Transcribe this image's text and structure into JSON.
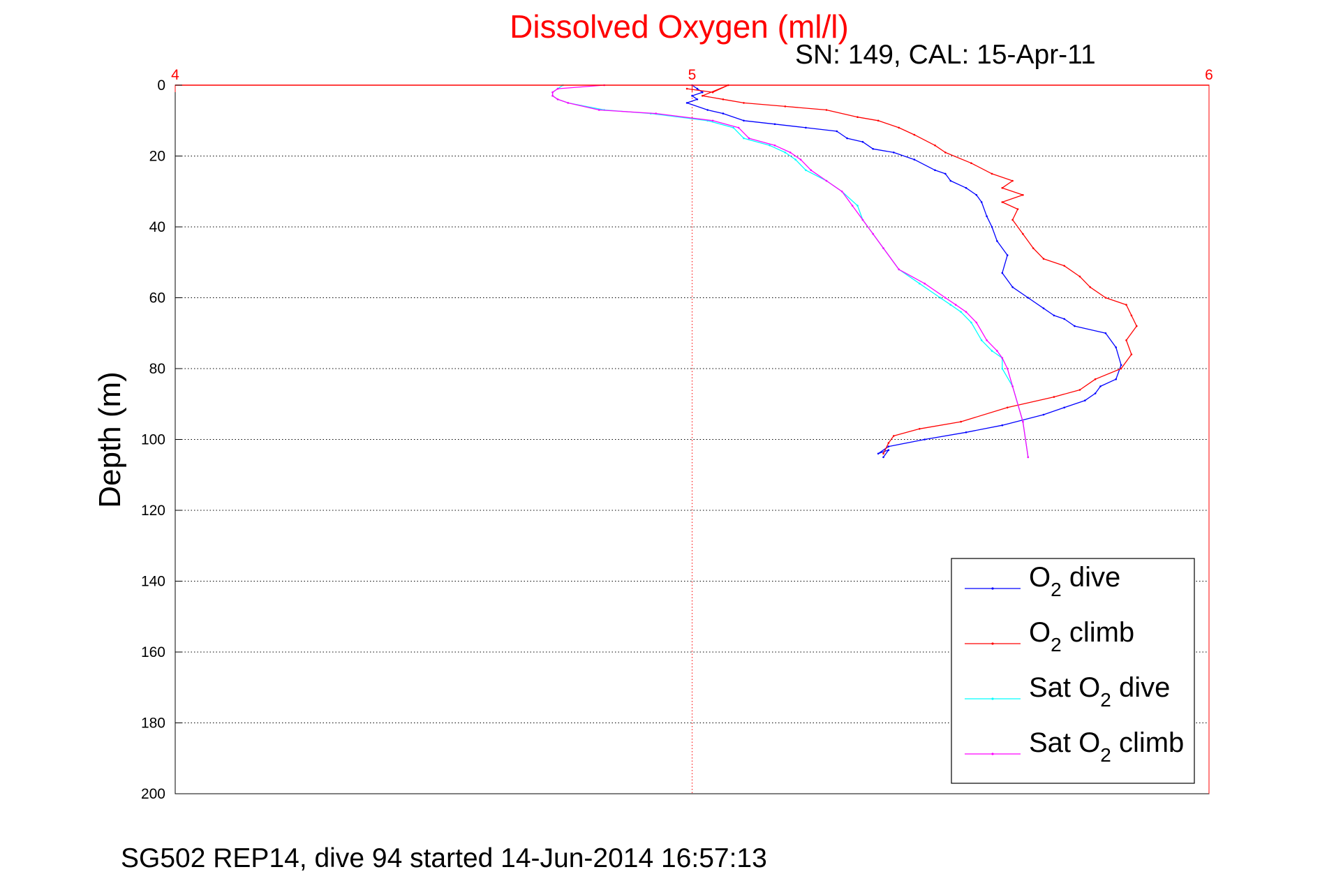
{
  "chart_data": {
    "type": "line",
    "title": "Dissolved Oxygen (ml/l)",
    "subtitle": "SN: 149, CAL: 15-Apr-11",
    "caption": "SG502 REP14, dive 94 started 14-Jun-2014 16:57:13",
    "xlabel": "",
    "ylabel": "Depth (m)",
    "xlim": [
      4,
      6
    ],
    "ylim": [
      0,
      200
    ],
    "y_reversed": true,
    "x_axis_position": "top",
    "xticks": [
      "4",
      "5",
      "6"
    ],
    "yticks": [
      "0",
      "20",
      "40",
      "60",
      "80",
      "100",
      "120",
      "140",
      "160",
      "180",
      "200"
    ],
    "grid": true,
    "legend_position": "bottom-right",
    "colors": {
      "title": "#ff0000",
      "x_axis": "#ff0000",
      "y_axis": "#000000"
    },
    "legend": [
      {
        "main": "O",
        "sub": "2",
        "rest": " dive",
        "color": "#0000ff"
      },
      {
        "main": "O",
        "sub": "2",
        "rest": " climb",
        "color": "#ff0000"
      },
      {
        "main": "Sat O",
        "sub": "2",
        "rest": " dive",
        "color": "#00ffff"
      },
      {
        "main": "Sat O",
        "sub": "2",
        "rest": " climb",
        "color": "#ff00ff"
      }
    ],
    "series": [
      {
        "name": "O2 dive",
        "color": "#0000ff",
        "x": [
          5.0,
          5.01,
          5.02,
          5.0,
          5.01,
          4.99,
          5.03,
          5.06,
          5.1,
          5.16,
          5.22,
          5.28,
          5.3,
          5.33,
          5.35,
          5.39,
          5.43,
          5.47,
          5.49,
          5.5,
          5.53,
          5.55,
          5.56,
          5.57,
          5.58,
          5.59,
          5.61,
          5.6,
          5.62,
          5.65,
          5.68,
          5.7,
          5.72,
          5.74,
          5.8,
          5.82,
          5.83,
          5.82,
          5.79,
          5.78,
          5.76,
          5.72,
          5.68,
          5.6,
          5.53,
          5.45,
          5.38,
          5.36,
          5.38,
          5.37
        ],
        "y": [
          0,
          1,
          2,
          3,
          4,
          5,
          7,
          8,
          10,
          11,
          12,
          13,
          15,
          16,
          18,
          19,
          21,
          24,
          25,
          27,
          29,
          31,
          33,
          37,
          40,
          44,
          48,
          53,
          57,
          60,
          63,
          65,
          66,
          68,
          70,
          74,
          79,
          83,
          85,
          87,
          89,
          91,
          93,
          96,
          98,
          100,
          102,
          104,
          103,
          105
        ]
      },
      {
        "name": "O2 climb",
        "color": "#ff0000",
        "x": [
          4.99,
          5.04,
          5.07,
          5.02,
          5.06,
          5.1,
          5.18,
          5.26,
          5.32,
          5.36,
          5.4,
          5.43,
          5.47,
          5.49,
          5.54,
          5.58,
          5.62,
          5.6,
          5.64,
          5.6,
          5.63,
          5.62,
          5.64,
          5.66,
          5.68,
          5.72,
          5.75,
          5.77,
          5.8,
          5.84,
          5.85,
          5.86,
          5.84,
          5.85,
          5.83,
          5.78,
          5.75,
          5.7,
          5.61,
          5.52,
          5.44,
          5.39,
          5.38,
          5.37
        ],
        "y": [
          1,
          2,
          0,
          3,
          4,
          5,
          6,
          7,
          9,
          10,
          12,
          14,
          17,
          19,
          22,
          25,
          27,
          29,
          31,
          33,
          35,
          38,
          42,
          46,
          49,
          51,
          54,
          57,
          60,
          62,
          65,
          68,
          72,
          76,
          80,
          83,
          86,
          88,
          91,
          95,
          97,
          99,
          101,
          104
        ]
      },
      {
        "name": "Sat O2 dive",
        "color": "#00ffff",
        "x": [
          4.75,
          4.74,
          4.73,
          4.73,
          4.74,
          4.76,
          4.83,
          4.92,
          5.03,
          5.08,
          5.1,
          5.15,
          5.18,
          5.2,
          5.22,
          5.26,
          5.29,
          5.32,
          5.33,
          5.35,
          5.37,
          5.4,
          5.44,
          5.48,
          5.5,
          5.52,
          5.54,
          5.56,
          5.58,
          5.6,
          5.6,
          5.62,
          5.64,
          5.65
        ],
        "y": [
          0,
          1,
          2,
          3,
          4,
          5,
          7,
          8,
          10,
          12,
          15,
          17,
          19,
          21,
          24,
          27,
          30,
          34,
          38,
          42,
          46,
          52,
          56,
          60,
          62,
          64,
          67,
          72,
          75,
          77,
          80,
          85,
          95,
          105
        ]
      },
      {
        "name": "Sat O2 climb",
        "color": "#ff00ff",
        "x": [
          4.83,
          4.74,
          4.73,
          4.73,
          4.74,
          4.76,
          4.82,
          4.93,
          5.04,
          5.09,
          5.11,
          5.16,
          5.19,
          5.21,
          5.23,
          5.26,
          5.29,
          5.31,
          5.33,
          5.35,
          5.37,
          5.4,
          5.45,
          5.49,
          5.51,
          5.53,
          5.55,
          5.57,
          5.59,
          5.6,
          5.61,
          5.62,
          5.64,
          5.65
        ],
        "y": [
          0,
          1,
          2,
          3,
          4,
          5,
          7,
          8,
          10,
          12,
          15,
          17,
          19,
          21,
          24,
          27,
          30,
          34,
          38,
          42,
          46,
          52,
          56,
          60,
          62,
          64,
          67,
          72,
          75,
          77,
          80,
          85,
          95,
          105
        ]
      }
    ]
  }
}
